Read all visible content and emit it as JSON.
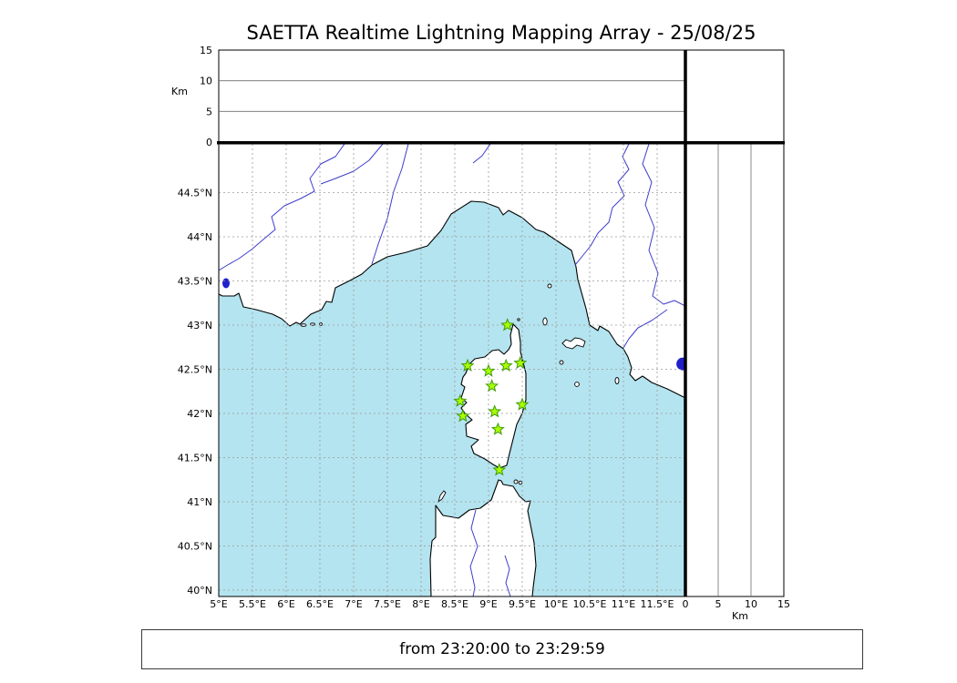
{
  "title": "SAETTA Realtime Lightning Mapping Array - 25/08/25",
  "status_bar": {
    "text": "from 23:20:00 to 23:29:59"
  },
  "altitude_panel": {
    "axis_label": "Km",
    "ticks": [
      "0",
      "5",
      "10",
      "15"
    ]
  },
  "right_panel": {
    "axis_label": "Km",
    "ticks": [
      "0",
      "5",
      "10",
      "15"
    ]
  },
  "map": {
    "lat_ticks": [
      "40°N",
      "40.5°N",
      "41°N",
      "41.5°N",
      "42°N",
      "42.5°N",
      "43°N",
      "43.5°N",
      "44°N",
      "44.5°N"
    ],
    "lon_ticks": [
      "5°E",
      "5.5°E",
      "6°E",
      "6.5°E",
      "7°E",
      "7.5°E",
      "8°E",
      "8.5°E",
      "9°E",
      "9.5°E",
      "10°E",
      "10.5°E",
      "11°E",
      "11.5°E"
    ],
    "lake_dot": {
      "lon": 11.88,
      "lat": 42.56
    },
    "colors": {
      "sea": "#b4e4ef",
      "land": "#ffffff",
      "coastline": "#000000",
      "river": "#3d3dcc",
      "grid": "#9a9a9a",
      "station_fill": "#aaff00",
      "station_edge": "#3f9b0b",
      "lake": "#2020cc"
    }
  },
  "chart_data": {
    "type": "map",
    "title": "SAETTA Realtime Lightning Mapping Array - 25/08/25",
    "time_window_from": "23:20:00",
    "time_window_to": "23:29:59",
    "lon_axis": {
      "ticks_deg_e": [
        5,
        5.5,
        6,
        6.5,
        7,
        7.5,
        8,
        8.5,
        9,
        9.5,
        10,
        10.5,
        11,
        11.5
      ],
      "range_deg_e": [
        5.0,
        11.9
      ]
    },
    "lat_axis": {
      "ticks_deg_n": [
        40,
        40.5,
        41,
        41.5,
        42,
        42.5,
        43,
        43.5,
        44,
        44.5
      ],
      "range_deg_n": [
        39.9,
        45.0
      ]
    },
    "altitude_axis": {
      "unit": "Km",
      "ticks": [
        0,
        5,
        10,
        15
      ],
      "range": [
        0,
        15
      ]
    },
    "stations_lon_lat": [
      [
        9.28,
        43.0
      ],
      [
        8.69,
        42.54
      ],
      [
        9.0,
        42.48
      ],
      [
        9.26,
        42.54
      ],
      [
        9.47,
        42.57
      ],
      [
        9.05,
        42.31
      ],
      [
        8.58,
        42.14
      ],
      [
        9.5,
        42.1
      ],
      [
        8.62,
        41.97
      ],
      [
        9.09,
        42.02
      ],
      [
        9.14,
        41.82
      ],
      [
        9.16,
        41.36
      ]
    ],
    "lightning_points": [],
    "grid": "dashed 0.5deg",
    "legend": "none"
  }
}
